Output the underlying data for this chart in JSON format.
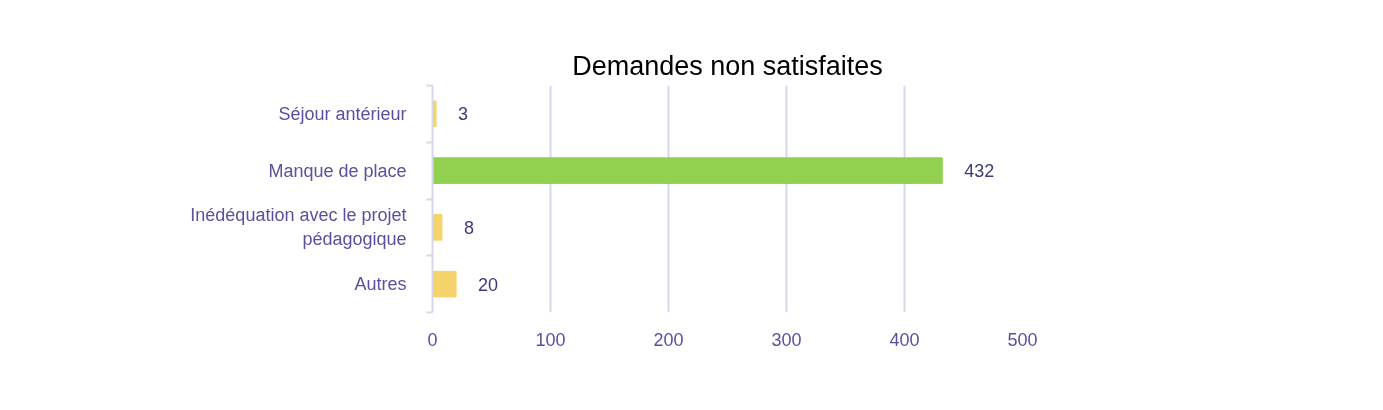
{
  "chart_data": {
    "type": "bar",
    "orientation": "horizontal",
    "title": "Demandes non satisfaites",
    "categories": [
      "Séjour antérieur",
      "Manque de place",
      "Inédéquation avec le projet pédagogique",
      "Autres"
    ],
    "values": [
      3,
      432,
      8,
      20
    ],
    "colors": [
      "#f4d36b",
      "#92d050",
      "#f4d36b",
      "#f4d36b"
    ],
    "xlim": [
      0,
      500
    ],
    "xticks": [
      0,
      100,
      200,
      300,
      400,
      500
    ],
    "grid": "x",
    "data_labels": true
  }
}
